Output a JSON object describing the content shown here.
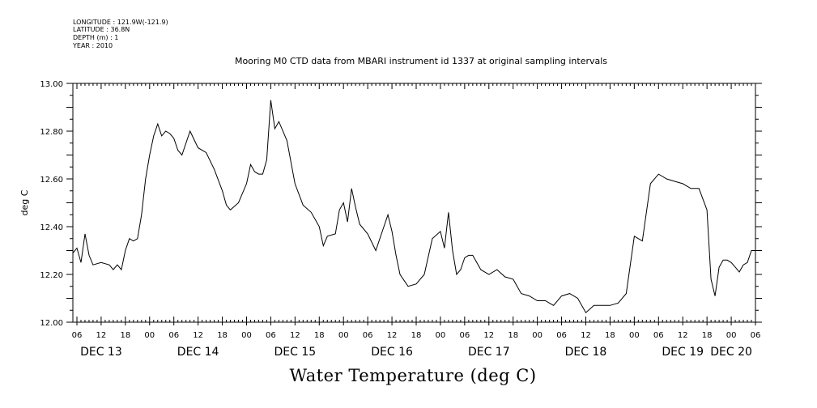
{
  "meta": {
    "longitude": "LONGITUDE : 121.9W(-121.9)",
    "latitude": "LATITUDE : 36.8N",
    "depth": "DEPTH (m) : 1",
    "year": "YEAR : 2010"
  },
  "bottom_title": "Water Temperature (deg C)",
  "chart_data": {
    "type": "line",
    "title": "Mooring M0 CTD data from MBARI instrument id 1337 at original sampling intervals",
    "xlabel": "",
    "ylabel": "deg C",
    "ylim": [
      12.0,
      13.0
    ],
    "xlim": [
      "2010-12-13T05:00",
      "2010-12-20T06:00"
    ],
    "y_ticks": [
      "12.00",
      "12.20",
      "12.40",
      "12.60",
      "12.80",
      "13.00"
    ],
    "x_hour_ticks": [
      "06",
      "12",
      "18",
      "00",
      "06",
      "12",
      "18",
      "00",
      "06",
      "12",
      "18",
      "00",
      "06",
      "12",
      "18",
      "00",
      "06",
      "12",
      "18",
      "00",
      "06",
      "12",
      "18",
      "00",
      "06",
      "12",
      "18",
      "00",
      "06"
    ],
    "x_day_labels": [
      "DEC 13",
      "DEC 14",
      "DEC 15",
      "DEC 16",
      "DEC 17",
      "DEC 18",
      "DEC 19",
      "DEC 20"
    ],
    "grid": false,
    "line_color": "#000000",
    "series": [
      {
        "x": [
          "2010-12-13T05:00",
          "2010-12-13T06:00",
          "2010-12-13T07:00",
          "2010-12-13T08:00",
          "2010-12-13T09:00",
          "2010-12-13T10:00",
          "2010-12-13T12:00",
          "2010-12-13T14:00",
          "2010-12-13T15:00",
          "2010-12-13T16:00",
          "2010-12-13T17:00",
          "2010-12-13T18:00",
          "2010-12-13T19:00",
          "2010-12-13T20:00",
          "2010-12-13T21:00",
          "2010-12-13T22:00",
          "2010-12-13T23:00",
          "2010-12-14T00:00",
          "2010-12-14T01:00",
          "2010-12-14T02:00",
          "2010-12-14T03:00",
          "2010-12-14T04:00",
          "2010-12-14T05:00",
          "2010-12-14T06:00",
          "2010-12-14T07:00",
          "2010-12-14T08:00",
          "2010-12-14T10:00",
          "2010-12-14T12:00",
          "2010-12-14T14:00",
          "2010-12-14T16:00",
          "2010-12-14T18:00",
          "2010-12-14T19:00",
          "2010-12-14T20:00",
          "2010-12-14T22:00",
          "2010-12-15T00:00",
          "2010-12-15T01:00",
          "2010-12-15T02:00",
          "2010-12-15T03:00",
          "2010-12-15T04:00",
          "2010-12-15T05:00",
          "2010-12-15T06:00",
          "2010-12-15T07:00",
          "2010-12-15T08:00",
          "2010-12-15T10:00",
          "2010-12-15T12:00",
          "2010-12-15T14:00",
          "2010-12-15T16:00",
          "2010-12-15T18:00",
          "2010-12-15T19:00",
          "2010-12-15T20:00",
          "2010-12-15T22:00",
          "2010-12-15T23:00",
          "2010-12-16T00:00",
          "2010-12-16T01:00",
          "2010-12-16T02:00",
          "2010-12-16T03:00",
          "2010-12-16T04:00",
          "2010-12-16T06:00",
          "2010-12-16T08:00",
          "2010-12-16T10:00",
          "2010-12-16T11:00",
          "2010-12-16T12:00",
          "2010-12-16T13:00",
          "2010-12-16T14:00",
          "2010-12-16T16:00",
          "2010-12-16T18:00",
          "2010-12-16T20:00",
          "2010-12-16T22:00",
          "2010-12-17T00:00",
          "2010-12-17T01:00",
          "2010-12-17T02:00",
          "2010-12-17T03:00",
          "2010-12-17T04:00",
          "2010-12-17T05:00",
          "2010-12-17T06:00",
          "2010-12-17T07:00",
          "2010-12-17T08:00",
          "2010-12-17T10:00",
          "2010-12-17T12:00",
          "2010-12-17T14:00",
          "2010-12-17T16:00",
          "2010-12-17T18:00",
          "2010-12-17T19:00",
          "2010-12-17T20:00",
          "2010-12-17T22:00",
          "2010-12-18T00:00",
          "2010-12-18T02:00",
          "2010-12-18T04:00",
          "2010-12-18T06:00",
          "2010-12-18T08:00",
          "2010-12-18T10:00",
          "2010-12-18T12:00",
          "2010-12-18T14:00",
          "2010-12-18T16:00",
          "2010-12-18T18:00",
          "2010-12-18T20:00",
          "2010-12-18T22:00",
          "2010-12-19T00:00",
          "2010-12-19T02:00",
          "2010-12-19T04:00",
          "2010-12-19T06:00",
          "2010-12-19T08:00",
          "2010-12-19T10:00",
          "2010-12-19T12:00",
          "2010-12-19T14:00",
          "2010-12-19T16:00",
          "2010-12-19T18:00",
          "2010-12-19T19:00",
          "2010-12-19T20:00",
          "2010-12-19T21:00",
          "2010-12-19T22:00",
          "2010-12-19T23:00",
          "2010-12-20T00:00",
          "2010-12-20T01:00",
          "2010-12-20T02:00",
          "2010-12-20T03:00",
          "2010-12-20T04:00",
          "2010-12-20T05:00",
          "2010-12-20T06:00"
        ],
        "y": [
          12.29,
          12.31,
          12.25,
          12.37,
          12.28,
          12.24,
          12.25,
          12.24,
          12.22,
          12.24,
          12.22,
          12.3,
          12.35,
          12.34,
          12.35,
          12.45,
          12.6,
          12.7,
          12.78,
          12.83,
          12.78,
          12.8,
          12.79,
          12.77,
          12.72,
          12.7,
          12.8,
          12.73,
          12.71,
          12.64,
          12.55,
          12.49,
          12.47,
          12.5,
          12.58,
          12.66,
          12.63,
          12.62,
          12.62,
          12.68,
          12.93,
          12.81,
          12.84,
          12.76,
          12.58,
          12.49,
          12.46,
          12.4,
          12.32,
          12.36,
          12.37,
          12.47,
          12.5,
          12.42,
          12.56,
          12.48,
          12.41,
          12.37,
          12.3,
          12.4,
          12.45,
          12.38,
          12.28,
          12.2,
          12.15,
          12.16,
          12.2,
          12.35,
          12.38,
          12.31,
          12.46,
          12.3,
          12.2,
          12.22,
          12.27,
          12.28,
          12.28,
          12.22,
          12.2,
          12.22,
          12.19,
          12.18,
          12.15,
          12.12,
          12.11,
          12.09,
          12.09,
          12.07,
          12.11,
          12.12,
          12.1,
          12.04,
          12.07,
          12.07,
          12.07,
          12.08,
          12.12,
          12.36,
          12.34,
          12.58,
          12.62,
          12.6,
          12.59,
          12.58,
          12.56,
          12.56,
          12.47,
          12.18,
          12.11,
          12.23,
          12.26,
          12.26,
          12.25,
          12.23,
          12.21,
          12.24,
          12.25,
          12.3,
          12.3
        ]
      }
    ]
  }
}
